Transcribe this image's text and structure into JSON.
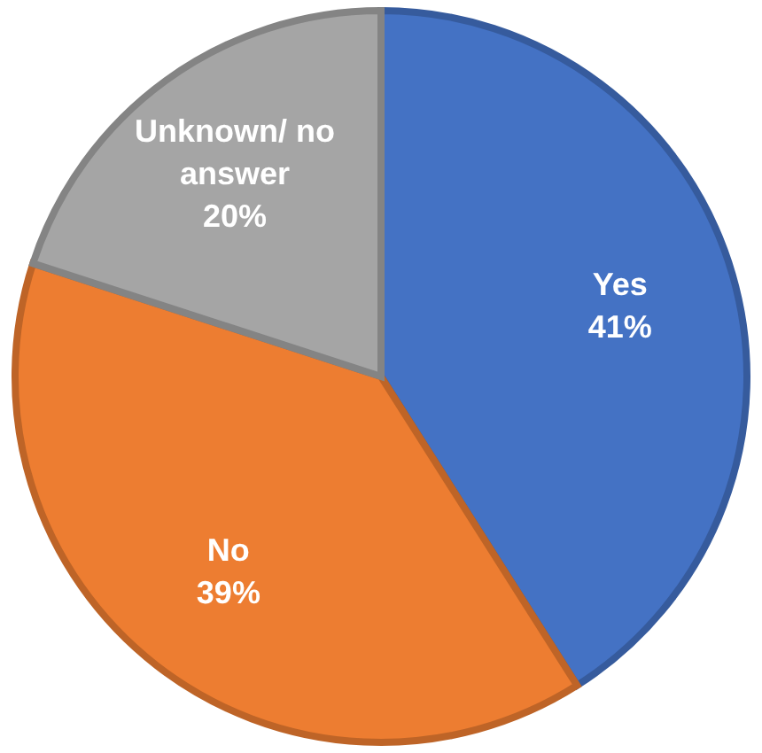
{
  "chart_data": {
    "type": "pie",
    "categories": [
      "Yes",
      "No",
      "Unknown/ no answer"
    ],
    "values": [
      41,
      39,
      20
    ],
    "colors": [
      "#4472c4",
      "#ed7d31",
      "#a5a5a5"
    ],
    "value_labels": [
      "41%",
      "39%",
      "20%"
    ],
    "legend": false
  }
}
